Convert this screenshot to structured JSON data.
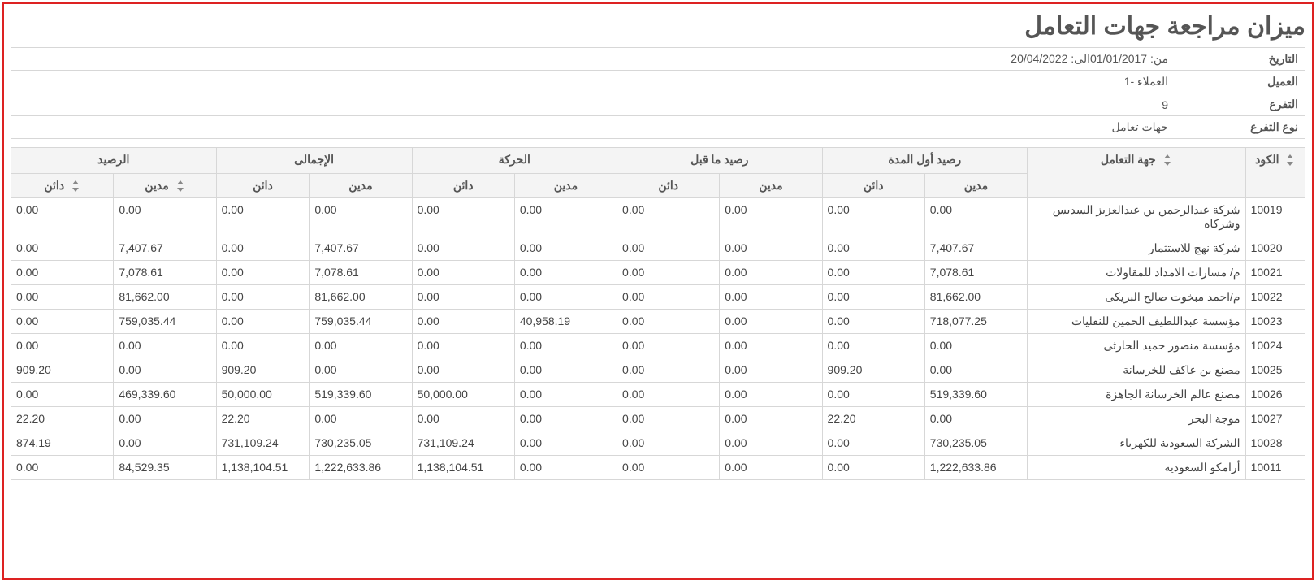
{
  "title": "ميزان مراجعة جهات التعامل",
  "meta": {
    "date_label": "التاريخ",
    "date_value": "من: 01/01/2017الى: 20/04/2022",
    "client_label": "العميل",
    "client_value": "العملاء -1",
    "branch_label": "التفرع",
    "branch_value": "9",
    "branch_type_label": "نوع التفرع",
    "branch_type_value": "جهات تعامل"
  },
  "headers": {
    "code": "الكود",
    "entity": "جهة التعامل",
    "opening": "رصيد أول المدة",
    "prior": "رصيد ما قبل",
    "movement": "الحركة",
    "total": "الإجمالى",
    "balance": "الرصيد",
    "debit": "مدين",
    "credit": "دائن"
  },
  "rows": [
    {
      "code": "10019",
      "name": "شركة عبدالرحمن بن عبدالعزيز السديس وشركاه",
      "open_d": "0.00",
      "open_c": "0.00",
      "pre_d": "0.00",
      "pre_c": "0.00",
      "mv_d": "0.00",
      "mv_c": "0.00",
      "tot_d": "0.00",
      "tot_c": "0.00",
      "bal_d": "0.00",
      "bal_c": "0.00"
    },
    {
      "code": "10020",
      "name": "شركة نهج للاستثمار",
      "open_d": "7,407.67",
      "open_c": "0.00",
      "pre_d": "0.00",
      "pre_c": "0.00",
      "mv_d": "0.00",
      "mv_c": "0.00",
      "tot_d": "7,407.67",
      "tot_c": "0.00",
      "bal_d": "7,407.67",
      "bal_c": "0.00"
    },
    {
      "code": "10021",
      "name": "م/ مسارات الامداد للمقاولات",
      "open_d": "7,078.61",
      "open_c": "0.00",
      "pre_d": "0.00",
      "pre_c": "0.00",
      "mv_d": "0.00",
      "mv_c": "0.00",
      "tot_d": "7,078.61",
      "tot_c": "0.00",
      "bal_d": "7,078.61",
      "bal_c": "0.00"
    },
    {
      "code": "10022",
      "name": "م/احمد مبخوت صالح البريكى",
      "open_d": "81,662.00",
      "open_c": "0.00",
      "pre_d": "0.00",
      "pre_c": "0.00",
      "mv_d": "0.00",
      "mv_c": "0.00",
      "tot_d": "81,662.00",
      "tot_c": "0.00",
      "bal_d": "81,662.00",
      "bal_c": "0.00"
    },
    {
      "code": "10023",
      "name": "مؤسسة عبداللطيف الحمين للنقليات",
      "open_d": "718,077.25",
      "open_c": "0.00",
      "pre_d": "0.00",
      "pre_c": "0.00",
      "mv_d": "40,958.19",
      "mv_c": "0.00",
      "tot_d": "759,035.44",
      "tot_c": "0.00",
      "bal_d": "759,035.44",
      "bal_c": "0.00"
    },
    {
      "code": "10024",
      "name": "مؤسسة منصور حميد الحارثى",
      "open_d": "0.00",
      "open_c": "0.00",
      "pre_d": "0.00",
      "pre_c": "0.00",
      "mv_d": "0.00",
      "mv_c": "0.00",
      "tot_d": "0.00",
      "tot_c": "0.00",
      "bal_d": "0.00",
      "bal_c": "0.00"
    },
    {
      "code": "10025",
      "name": "مصنع بن عاكف للخرسانة",
      "open_d": "0.00",
      "open_c": "909.20",
      "pre_d": "0.00",
      "pre_c": "0.00",
      "mv_d": "0.00",
      "mv_c": "0.00",
      "tot_d": "0.00",
      "tot_c": "909.20",
      "bal_d": "0.00",
      "bal_c": "909.20"
    },
    {
      "code": "10026",
      "name": "مصنع عالم الخرسانة الجاهزة",
      "open_d": "519,339.60",
      "open_c": "0.00",
      "pre_d": "0.00",
      "pre_c": "0.00",
      "mv_d": "0.00",
      "mv_c": "50,000.00",
      "tot_d": "519,339.60",
      "tot_c": "50,000.00",
      "bal_d": "469,339.60",
      "bal_c": "0.00"
    },
    {
      "code": "10027",
      "name": "موجة البحر",
      "open_d": "0.00",
      "open_c": "22.20",
      "pre_d": "0.00",
      "pre_c": "0.00",
      "mv_d": "0.00",
      "mv_c": "0.00",
      "tot_d": "0.00",
      "tot_c": "22.20",
      "bal_d": "0.00",
      "bal_c": "22.20"
    },
    {
      "code": "10028",
      "name": "الشركة السعودية للكهرباء",
      "open_d": "730,235.05",
      "open_c": "0.00",
      "pre_d": "0.00",
      "pre_c": "0.00",
      "mv_d": "0.00",
      "mv_c": "731,109.24",
      "tot_d": "730,235.05",
      "tot_c": "731,109.24",
      "bal_d": "0.00",
      "bal_c": "874.19"
    },
    {
      "code": "10011",
      "name": "أرامكو السعودية",
      "open_d": "1,222,633.86",
      "open_c": "0.00",
      "pre_d": "0.00",
      "pre_c": "0.00",
      "mv_d": "0.00",
      "mv_c": "1,138,104.51",
      "tot_d": "1,222,633.86",
      "tot_c": "1,138,104.51",
      "bal_d": "84,529.35",
      "bal_c": "0.00"
    }
  ],
  "style": {
    "frame_border_color": "#dd2222",
    "grid_color": "#d7d7d7",
    "header_bg": "#f4f4f4",
    "text_color": "#444444",
    "title_color": "#555555",
    "background_color": "#ffffff",
    "title_fontsize": 30,
    "body_fontsize": 14
  }
}
